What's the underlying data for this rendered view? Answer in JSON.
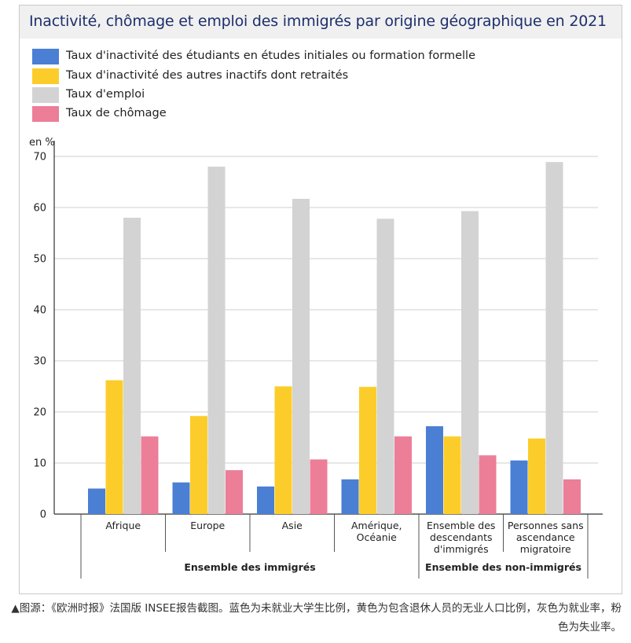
{
  "title": "Inactivité, chômage et emploi des immigrés par origine géographique en 2021",
  "unit_label": "en %",
  "caption": "▲图源：《欧洲时报》法国版 INSEE报告截图。蓝色为未就业大学生比例，黄色为包含退休人员的无业人口比例，灰色为就业率，粉色为失业率。",
  "chart_data": {
    "type": "bar",
    "title": "Inactivité, chômage et emploi des immigrés par origine géographique en 2021",
    "ylabel": "en %",
    "ylim": [
      0,
      70
    ],
    "yticks": [
      0,
      10,
      20,
      30,
      40,
      50,
      60,
      70
    ],
    "grid": true,
    "legend_position": "top-left",
    "categories": [
      [
        "Afrique"
      ],
      [
        "Europe"
      ],
      [
        "Asie"
      ],
      [
        "Amérique,",
        "Océanie"
      ],
      [
        "Ensemble des",
        "descendants",
        "d'immigrés"
      ],
      [
        "Personnes sans",
        "ascendance",
        "migratoire"
      ]
    ],
    "groups": [
      {
        "label": "Ensemble des immigrés",
        "categories": [
          0,
          1,
          2,
          3
        ]
      },
      {
        "label": "Ensemble des non-immigrés",
        "categories": [
          4,
          5
        ]
      }
    ],
    "series": [
      {
        "name": "Taux d'inactivité des étudiants en études initiales ou formation formelle",
        "color": "#4a7fd4",
        "values": [
          5.0,
          6.2,
          5.4,
          6.8,
          17.2,
          10.5
        ]
      },
      {
        "name": "Taux d'inactivité des autres inactifs dont retraités",
        "color": "#fccd2a",
        "values": [
          26.2,
          19.2,
          25.0,
          24.9,
          15.2,
          14.8
        ]
      },
      {
        "name": "Taux d'emploi",
        "color": "#d3d3d3",
        "values": [
          58.0,
          68.0,
          61.7,
          57.8,
          59.3,
          68.9
        ]
      },
      {
        "name": "Taux de chômage",
        "color": "#ec7e98",
        "values": [
          15.2,
          8.6,
          10.7,
          15.2,
          11.5,
          6.8
        ]
      }
    ]
  }
}
